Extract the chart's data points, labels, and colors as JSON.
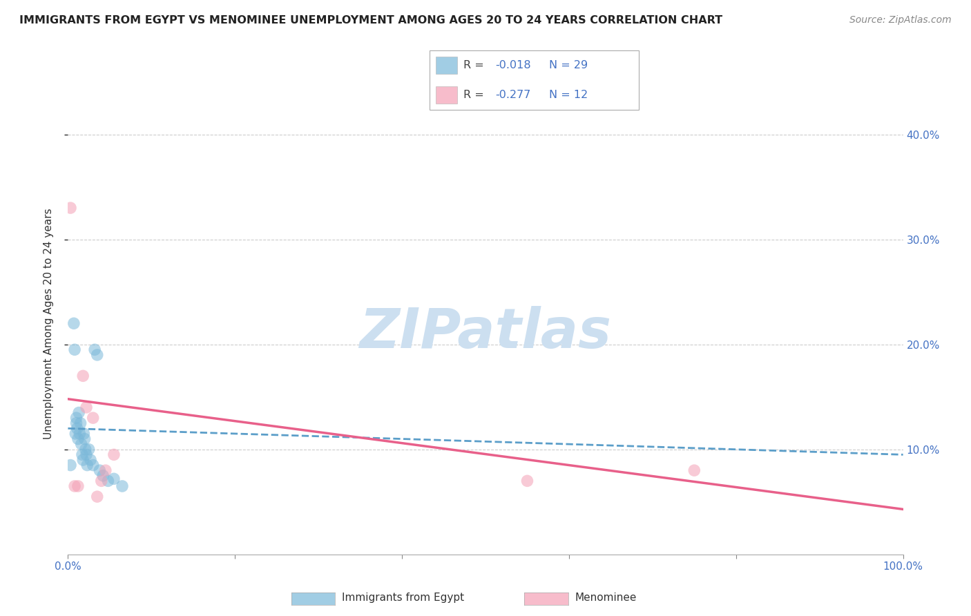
{
  "title": "IMMIGRANTS FROM EGYPT VS MENOMINEE UNEMPLOYMENT AMONG AGES 20 TO 24 YEARS CORRELATION CHART",
  "source": "Source: ZipAtlas.com",
  "ylabel": "Unemployment Among Ages 20 to 24 years",
  "xlim": [
    0.0,
    1.0
  ],
  "ylim": [
    0.0,
    0.44
  ],
  "blue_R": -0.018,
  "blue_N": 29,
  "pink_R": -0.277,
  "pink_N": 12,
  "blue_color": "#7ab8d9",
  "pink_color": "#f4a0b5",
  "trend_blue_color": "#5b9ec9",
  "trend_pink_color": "#e8608a",
  "grid_color": "#cccccc",
  "background_color": "#ffffff",
  "watermark": "ZIPatlas",
  "watermark_color": "#ccdff0",
  "blue_x": [
    0.003,
    0.007,
    0.008,
    0.009,
    0.01,
    0.01,
    0.011,
    0.012,
    0.013,
    0.014,
    0.015,
    0.016,
    0.017,
    0.018,
    0.019,
    0.02,
    0.021,
    0.022,
    0.023,
    0.025,
    0.027,
    0.03,
    0.032,
    0.035,
    0.038,
    0.042,
    0.048,
    0.055,
    0.065
  ],
  "blue_y": [
    0.085,
    0.22,
    0.195,
    0.115,
    0.125,
    0.13,
    0.12,
    0.11,
    0.135,
    0.115,
    0.125,
    0.105,
    0.095,
    0.09,
    0.115,
    0.11,
    0.1,
    0.095,
    0.085,
    0.1,
    0.09,
    0.085,
    0.195,
    0.19,
    0.08,
    0.075,
    0.07,
    0.072,
    0.065
  ],
  "pink_x": [
    0.003,
    0.008,
    0.012,
    0.018,
    0.022,
    0.03,
    0.035,
    0.04,
    0.045,
    0.055,
    0.55,
    0.75
  ],
  "pink_y": [
    0.33,
    0.065,
    0.065,
    0.17,
    0.14,
    0.13,
    0.055,
    0.07,
    0.08,
    0.095,
    0.07,
    0.08
  ],
  "trend_blue_x0": 0.0,
  "trend_blue_x1": 1.0,
  "trend_blue_y0": 0.12,
  "trend_blue_y1": 0.095,
  "trend_pink_x0": 0.0,
  "trend_pink_x1": 1.0,
  "trend_pink_y0": 0.148,
  "trend_pink_y1": 0.043
}
